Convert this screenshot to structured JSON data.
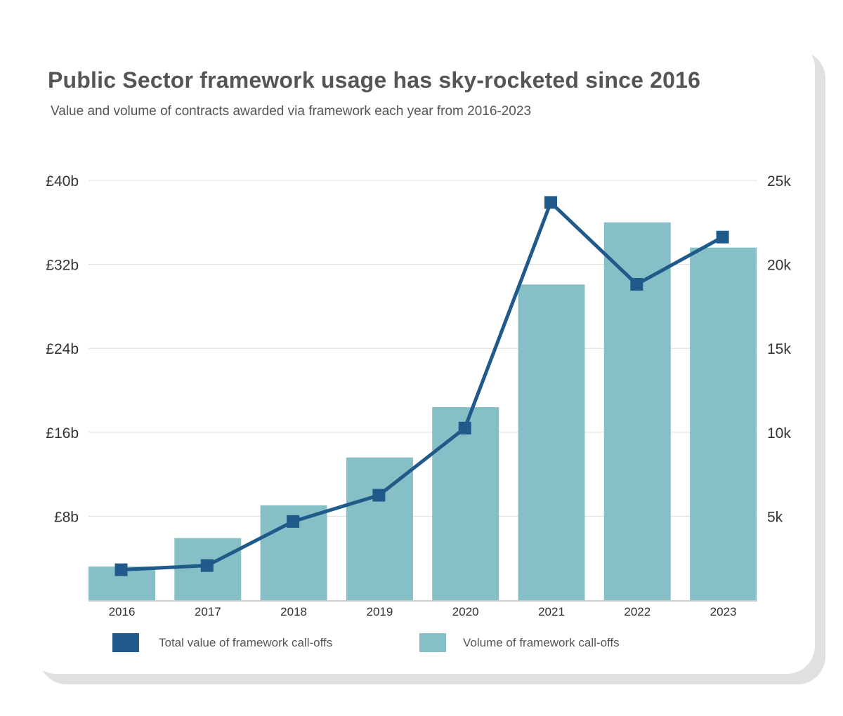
{
  "title": "Public Sector framework usage has sky-rocketed since 2016",
  "subtitle": "Value and volume of contracts awarded via framework each year from 2016-2023",
  "colors": {
    "value_line": "#1f5a8a",
    "volume_bar": "#86bfc6",
    "grid": "#dddddd",
    "text": "#555555"
  },
  "legend": [
    {
      "label": "Total value of framework call-offs",
      "color": "#1f5a8a"
    },
    {
      "label": "Volume of framework call-offs",
      "color": "#86bfc6"
    }
  ],
  "chart_data": {
    "type": "bar+line",
    "title": "Public Sector framework usage has sky-rocketed since 2016",
    "subtitle": "Value and volume of contracts awarded via framework each year from 2016-2023",
    "categories": [
      "2016",
      "2017",
      "2018",
      "2019",
      "2020",
      "2021",
      "2022",
      "2023"
    ],
    "left_axis": {
      "range": [
        0,
        40
      ],
      "unit": "£b",
      "ticks": [
        8,
        16,
        24,
        32,
        40
      ],
      "tick_labels": [
        "£8b",
        "£16b",
        "£24b",
        "£32b",
        "£40b"
      ]
    },
    "right_axis": {
      "range": [
        0,
        25000
      ],
      "ticks": [
        5000,
        10000,
        15000,
        20000,
        25000
      ],
      "tick_labels": [
        "5k",
        "10k",
        "15k",
        "20k",
        "25k"
      ]
    },
    "grid": true,
    "legend_position": "bottom",
    "series": [
      {
        "name": "Total value of framework call-offs",
        "type": "line",
        "axis": "left",
        "marker": "square",
        "values": [
          2.9,
          3.3,
          7.5,
          10.0,
          16.4,
          37.9,
          30.1,
          34.6
        ]
      },
      {
        "name": "Volume of framework call-offs",
        "type": "bar",
        "axis": "right",
        "values": [
          2000,
          3700,
          5650,
          8500,
          11500,
          18800,
          22500,
          21000
        ]
      }
    ]
  }
}
